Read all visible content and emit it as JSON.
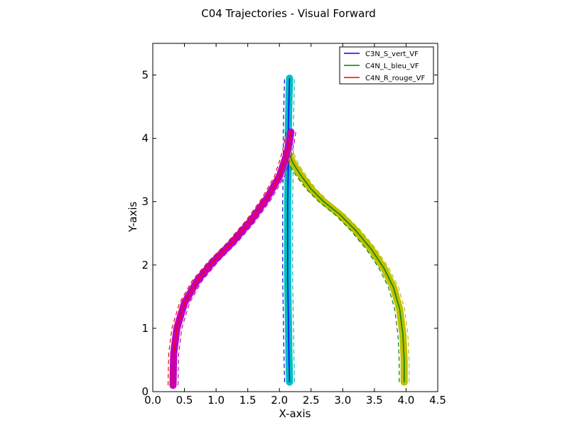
{
  "chart_data": {
    "type": "line",
    "title": "C04 Trajectories - Visual Forward",
    "xlabel": "X-axis",
    "ylabel": "Y-axis",
    "xlim": [
      0.0,
      4.5
    ],
    "ylim": [
      0,
      5.5
    ],
    "xticks": [
      "0.0",
      "0.5",
      "1.0",
      "1.5",
      "2.0",
      "2.5",
      "3.0",
      "3.5",
      "4.0",
      "4.5"
    ],
    "yticks": [
      "0",
      "1",
      "2",
      "3",
      "4",
      "5"
    ],
    "grid": false,
    "legend_position": "top-right",
    "series": [
      {
        "name": "C3N_S_vert_VF",
        "color": "#0000ff",
        "band_color": "#00bfbf",
        "x": [
          2.16,
          2.15,
          2.14,
          2.13,
          2.13,
          2.13,
          2.14,
          2.14,
          2.15,
          2.16
        ],
        "y": [
          0.15,
          0.6,
          1.2,
          1.8,
          2.4,
          3.0,
          3.6,
          4.1,
          4.6,
          4.95
        ]
      },
      {
        "name": "C4N_L_bleu_VF",
        "color": "#008000",
        "band_color": "#bfbf00",
        "x": [
          3.97,
          3.97,
          3.95,
          3.9,
          3.8,
          3.65,
          3.45,
          3.2,
          2.95,
          2.7,
          2.5,
          2.35,
          2.22,
          2.13
        ],
        "y": [
          0.15,
          0.5,
          0.9,
          1.3,
          1.65,
          1.95,
          2.25,
          2.55,
          2.8,
          3.0,
          3.2,
          3.4,
          3.6,
          3.8
        ]
      },
      {
        "name": "C4N_R_rouge_VF",
        "color": "#ff0000",
        "band_color": "#bf00bf",
        "x": [
          0.32,
          0.33,
          0.38,
          0.5,
          0.7,
          0.95,
          1.25,
          1.55,
          1.8,
          2.0,
          2.1,
          2.15,
          2.18
        ],
        "y": [
          0.1,
          0.6,
          1.0,
          1.4,
          1.75,
          2.05,
          2.35,
          2.7,
          3.05,
          3.4,
          3.7,
          3.9,
          4.1
        ]
      }
    ]
  }
}
